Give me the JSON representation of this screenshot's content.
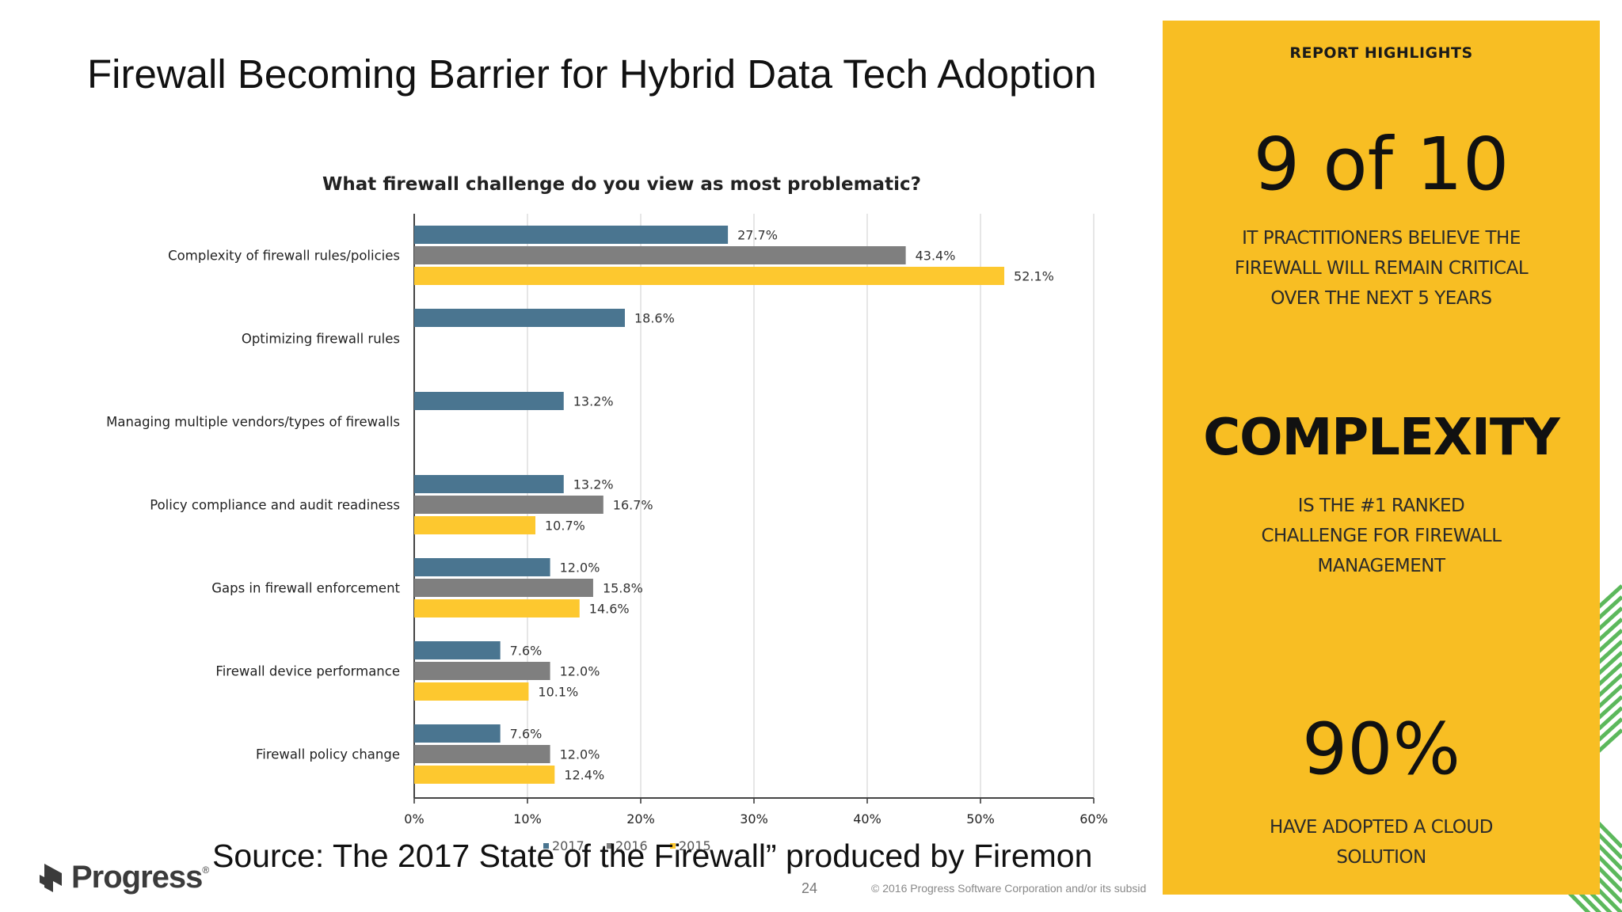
{
  "slide": {
    "title": "Firewall Becoming Barrier for Hybrid Data Tech Adoption",
    "source": "Source: The 2017 State of the Firewall” produced by Firemon",
    "page_number": "24",
    "copyright": "© 2016 Progress Software Corporation and/or its subsid",
    "logo_text": "Progress",
    "logo_reg": "®"
  },
  "colors": {
    "s2017": "#4a7590",
    "s2016": "#7f7f7f",
    "s2015": "#fdc82f",
    "panel": "#f8be23",
    "grid": "#dddddd",
    "stripes": "#5cb85c"
  },
  "chart_data": {
    "type": "bar",
    "orientation": "horizontal",
    "title": "What firewall challenge do you view as most problematic?",
    "categories": [
      "Complexity of firewall rules/policies",
      "Optimizing firewall rules",
      "Managing multiple vendors/types of firewalls",
      "Policy compliance and audit readiness",
      "Gaps in firewall enforcement",
      "Firewall device performance",
      "Firewall policy change"
    ],
    "series": [
      {
        "name": "2017",
        "values": [
          27.7,
          18.6,
          13.2,
          13.2,
          12.0,
          7.6,
          7.6
        ],
        "labels": [
          "27.7%",
          "18.6%",
          "13.2%",
          "13.2%",
          "12.0%",
          "7.6%",
          "7.6%"
        ]
      },
      {
        "name": "2016",
        "values": [
          43.4,
          null,
          null,
          16.7,
          15.8,
          12.0,
          12.0
        ],
        "labels": [
          "43.4%",
          null,
          null,
          "16.7%",
          "15.8%",
          "12.0%",
          "12.0%"
        ]
      },
      {
        "name": "2015",
        "values": [
          52.1,
          null,
          null,
          10.7,
          14.6,
          10.1,
          12.4
        ],
        "labels": [
          "52.1%",
          null,
          null,
          "10.7%",
          "14.6%",
          "10.1%",
          "12.4%"
        ]
      }
    ],
    "xlim": [
      0,
      60
    ],
    "xticks": [
      "0%",
      "10%",
      "20%",
      "30%",
      "40%",
      "50%",
      "60%"
    ],
    "grid": true,
    "legend": "bottom"
  },
  "highlights": {
    "heading": "REPORT HIGHLIGHTS",
    "items": [
      {
        "big": "9 of 10",
        "lines": [
          "IT PRACTITIONERS BELIEVE THE",
          "FIREWALL WILL REMAIN CRITICAL",
          "OVER THE NEXT 5 YEARS"
        ]
      },
      {
        "big": "COMPLEXITY",
        "lines": [
          "IS THE #1 RANKED",
          "CHALLENGE FOR FIREWALL",
          "MANAGEMENT"
        ]
      },
      {
        "big": "90%",
        "lines": [
          "HAVE ADOPTED A CLOUD",
          "SOLUTION"
        ]
      }
    ]
  }
}
